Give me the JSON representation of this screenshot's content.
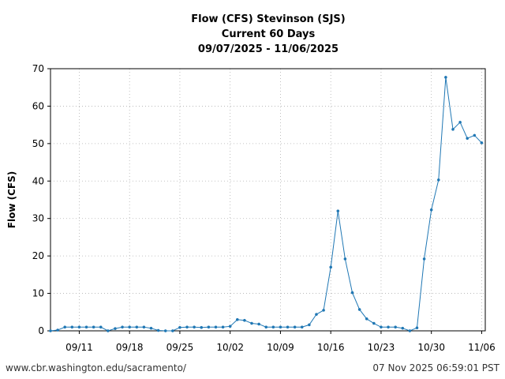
{
  "chart_data": {
    "type": "line",
    "title_lines": [
      "Flow (CFS) Stevinson (SJS)",
      "Current 60 Days",
      "09/07/2025 - 11/06/2025"
    ],
    "xlabel": "",
    "ylabel": "Flow (CFS)",
    "ylim": [
      0,
      70
    ],
    "yticks": [
      0,
      10,
      20,
      30,
      40,
      50,
      60,
      70
    ],
    "xlim_day": [
      0,
      60.5
    ],
    "xticks": [
      {
        "label": "09/11",
        "day": 4
      },
      {
        "label": "09/18",
        "day": 11
      },
      {
        "label": "09/25",
        "day": 18
      },
      {
        "label": "10/02",
        "day": 25
      },
      {
        "label": "10/09",
        "day": 32
      },
      {
        "label": "10/16",
        "day": 39
      },
      {
        "label": "10/23",
        "day": 46
      },
      {
        "label": "10/30",
        "day": 53
      },
      {
        "label": "11/06",
        "day": 60
      }
    ],
    "grid": true,
    "series_color": "#1f77b4",
    "series": [
      {
        "values": [
          0,
          0.2,
          1,
          1,
          1,
          1,
          1,
          1,
          0,
          0.6,
          1,
          1,
          1,
          1,
          0.7,
          0.1,
          0,
          0,
          0.9,
          1,
          1,
          0.9,
          1,
          1,
          1,
          1.2,
          3,
          2.8,
          2,
          1.8,
          1,
          1,
          1,
          1,
          1,
          1,
          1.6,
          4.4,
          5.5,
          17,
          32,
          19.2,
          10.2,
          5.7,
          3.2,
          2,
          1,
          1,
          1,
          0.7,
          0,
          0.8,
          19.2,
          32.3,
          40.3,
          67.7,
          53.8,
          55.7,
          51.4,
          52.2,
          50.2
        ]
      }
    ]
  },
  "footer": {
    "left": "www.cbr.washington.edu/sacramento/",
    "right": "07 Nov 2025 06:59:01 PST"
  }
}
